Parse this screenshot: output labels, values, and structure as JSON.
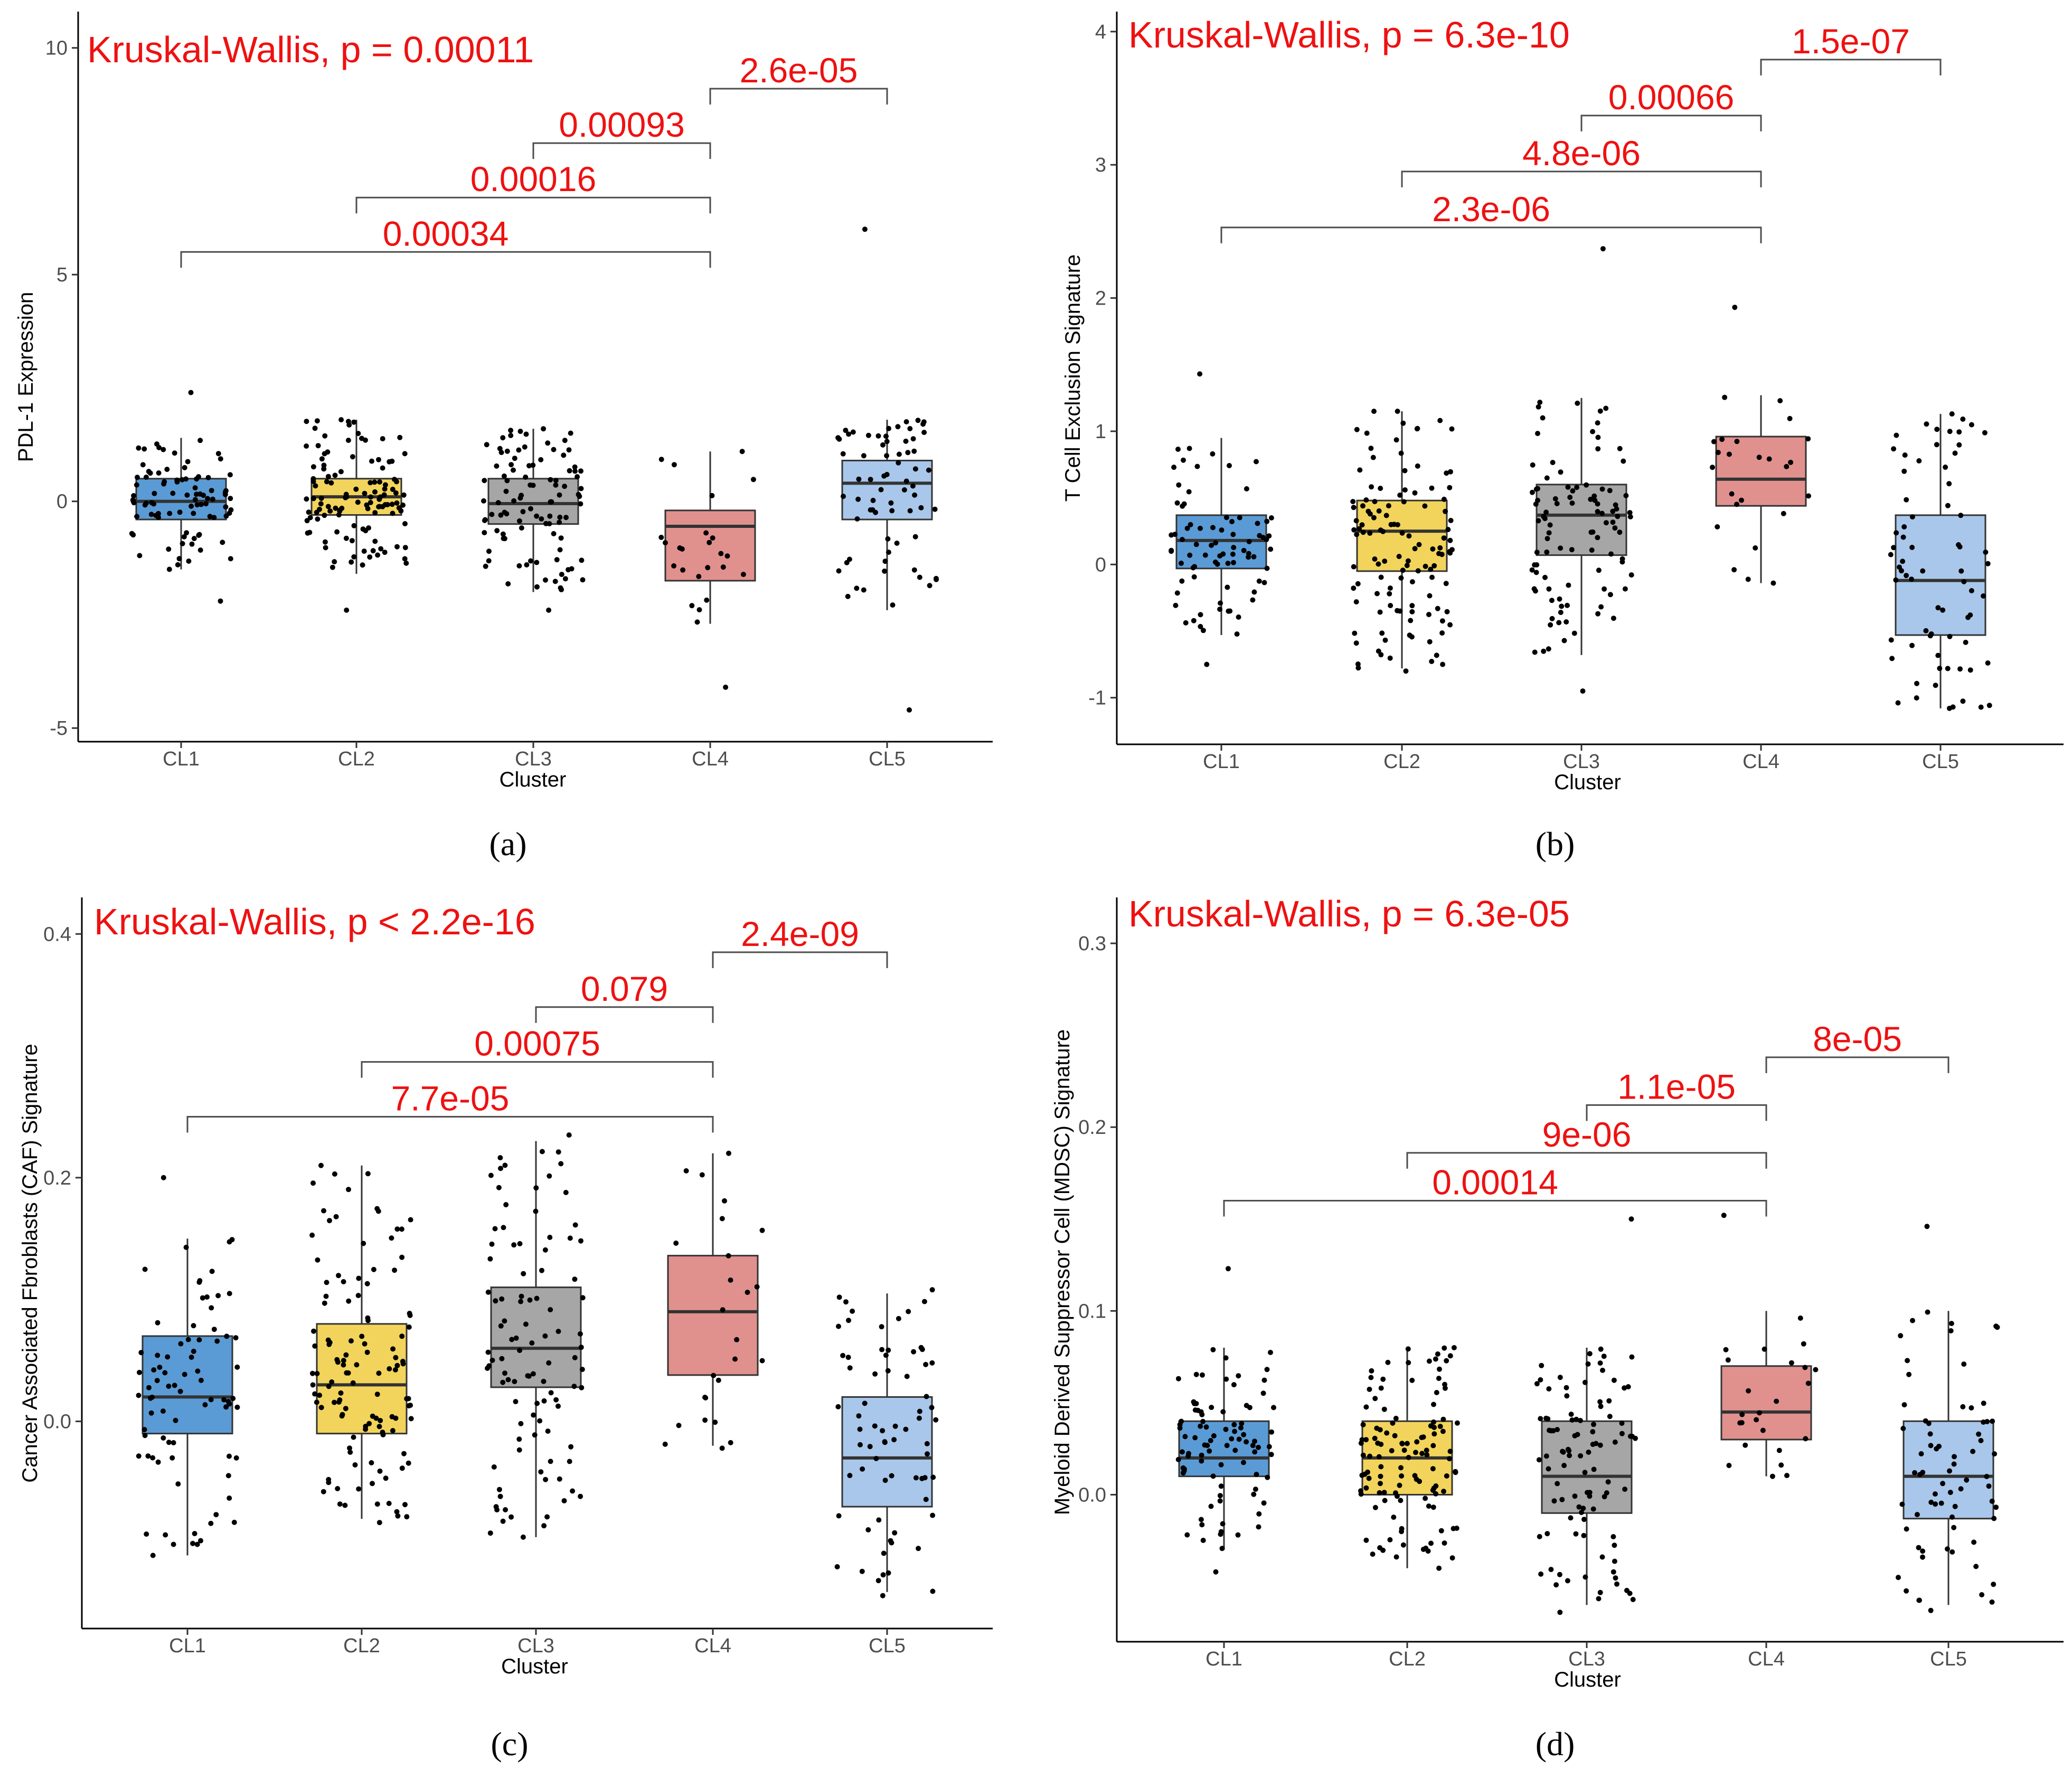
{
  "chart_data": [
    {
      "type": "box",
      "panel": "(a)",
      "xlabel": "Cluster",
      "ylabel": "PDL-1 Expression",
      "ylim": [
        -5.3,
        10.8
      ],
      "yticks": [
        -5,
        0,
        5,
        10
      ],
      "ytick_labels": [
        "-5",
        "0",
        "5",
        "10"
      ],
      "kruskal_label": "Kruskal-Wallis, p = 0.00011",
      "categories": [
        "CL1",
        "CL2",
        "CL3",
        "CL4",
        "CL5"
      ],
      "boxes": [
        {
          "cluster": "CL1",
          "color": "#5b9bd5",
          "q1": -0.4,
          "median": 0.0,
          "q3": 0.5,
          "whisker_low": -1.5,
          "whisker_high": 1.4,
          "n": 90,
          "seed": 11,
          "jlow": -2.2,
          "jhigh": 2.4
        },
        {
          "cluster": "CL2",
          "color": "#f2d45c",
          "q1": -0.3,
          "median": 0.1,
          "q3": 0.5,
          "whisker_low": -1.6,
          "whisker_high": 1.8,
          "n": 120,
          "seed": 12,
          "jlow": -2.4,
          "jhigh": 1.8
        },
        {
          "cluster": "CL3",
          "color": "#a6a6a6",
          "q1": -0.5,
          "median": -0.05,
          "q3": 0.5,
          "whisker_low": -2.0,
          "whisker_high": 1.6,
          "n": 100,
          "seed": 13,
          "jlow": -2.4,
          "jhigh": 1.6
        },
        {
          "cluster": "CL4",
          "color": "#e0918e",
          "q1": -1.75,
          "median": -0.55,
          "q3": -0.2,
          "whisker_low": -2.7,
          "whisker_high": 1.1,
          "n": 25,
          "seed": 14,
          "jlow": -4.1,
          "jhigh": 1.1
        },
        {
          "cluster": "CL5",
          "color": "#a9c7ea",
          "q1": -0.4,
          "median": 0.4,
          "q3": 0.9,
          "whisker_low": -2.4,
          "whisker_high": 1.8,
          "n": 70,
          "seed": 15,
          "jlow": -4.6,
          "jhigh": 6.0
        }
      ],
      "comparisons": [
        {
          "from": "CL1",
          "to": "CL4",
          "y": 5.5,
          "label": "0.00034"
        },
        {
          "from": "CL2",
          "to": "CL4",
          "y": 6.7,
          "label": "0.00016"
        },
        {
          "from": "CL3",
          "to": "CL4",
          "y": 7.9,
          "label": "0.00093"
        },
        {
          "from": "CL4",
          "to": "CL5",
          "y": 9.1,
          "label": "2.6e-05"
        }
      ]
    },
    {
      "type": "box",
      "panel": "(b)",
      "xlabel": "Cluster",
      "ylabel": "T Cell Exclusion Signature",
      "ylim": [
        -1.35,
        4.15
      ],
      "yticks": [
        -1,
        0,
        1,
        2,
        3,
        4
      ],
      "ytick_labels": [
        "-1",
        "0",
        "1",
        "2",
        "3",
        "4"
      ],
      "kruskal_label": "Kruskal-Wallis, p = 6.3e-10",
      "categories": [
        "CL1",
        "CL2",
        "CL3",
        "CL4",
        "CL5"
      ],
      "boxes": [
        {
          "cluster": "CL1",
          "color": "#5b9bd5",
          "q1": -0.03,
          "median": 0.18,
          "q3": 0.37,
          "whisker_low": -0.53,
          "whisker_high": 0.95,
          "n": 80,
          "seed": 21,
          "jlow": -0.75,
          "jhigh": 1.43
        },
        {
          "cluster": "CL2",
          "color": "#f2d45c",
          "q1": -0.05,
          "median": 0.25,
          "q3": 0.48,
          "whisker_low": -0.78,
          "whisker_high": 1.15,
          "n": 120,
          "seed": 22,
          "jlow": -0.8,
          "jhigh": 1.15
        },
        {
          "cluster": "CL3",
          "color": "#a6a6a6",
          "q1": 0.07,
          "median": 0.37,
          "q3": 0.6,
          "whisker_low": -0.68,
          "whisker_high": 1.25,
          "n": 100,
          "seed": 23,
          "jlow": -0.95,
          "jhigh": 2.37
        },
        {
          "cluster": "CL4",
          "color": "#e0918e",
          "q1": 0.44,
          "median": 0.64,
          "q3": 0.96,
          "whisker_low": -0.14,
          "whisker_high": 1.27,
          "n": 25,
          "seed": 24,
          "jlow": -0.14,
          "jhigh": 1.93
        },
        {
          "cluster": "CL5",
          "color": "#a9c7ea",
          "q1": -0.53,
          "median": -0.12,
          "q3": 0.37,
          "whisker_low": -1.08,
          "whisker_high": 1.13,
          "n": 70,
          "seed": 25,
          "jlow": -1.08,
          "jhigh": 1.13
        }
      ],
      "comparisons": [
        {
          "from": "CL1",
          "to": "CL4",
          "y": 2.53,
          "label": "2.3e-06"
        },
        {
          "from": "CL2",
          "to": "CL4",
          "y": 2.95,
          "label": "4.8e-06"
        },
        {
          "from": "CL3",
          "to": "CL4",
          "y": 3.37,
          "label": "0.00066"
        },
        {
          "from": "CL4",
          "to": "CL5",
          "y": 3.79,
          "label": "1.5e-07"
        }
      ]
    },
    {
      "type": "box",
      "panel": "(c)",
      "xlabel": "Cluster",
      "ylabel": "Cancer Associated Fbroblasts (CAF) Signature",
      "ylim": [
        -0.17,
        0.43
      ],
      "yticks": [
        0.0,
        0.2,
        0.4
      ],
      "ytick_labels": [
        "0.0",
        "0.2",
        "0.4"
      ],
      "kruskal_label": "Kruskal-Wallis, p < 2.2e-16",
      "categories": [
        "CL1",
        "CL2",
        "CL3",
        "CL4",
        "CL5"
      ],
      "boxes": [
        {
          "cluster": "CL1",
          "color": "#5b9bd5",
          "q1": -0.01,
          "median": 0.02,
          "q3": 0.07,
          "whisker_low": -0.11,
          "whisker_high": 0.15,
          "n": 80,
          "seed": 31,
          "jlow": -0.11,
          "jhigh": 0.2
        },
        {
          "cluster": "CL2",
          "color": "#f2d45c",
          "q1": -0.01,
          "median": 0.03,
          "q3": 0.08,
          "whisker_low": -0.08,
          "whisker_high": 0.21,
          "n": 120,
          "seed": 32,
          "jlow": -0.083,
          "jhigh": 0.21
        },
        {
          "cluster": "CL3",
          "color": "#a6a6a6",
          "q1": 0.028,
          "median": 0.06,
          "q3": 0.11,
          "whisker_low": -0.095,
          "whisker_high": 0.23,
          "n": 100,
          "seed": 33,
          "jlow": -0.095,
          "jhigh": 0.235
        },
        {
          "cluster": "CL4",
          "color": "#e0918e",
          "q1": 0.038,
          "median": 0.09,
          "q3": 0.136,
          "whisker_low": -0.02,
          "whisker_high": 0.22,
          "n": 25,
          "seed": 34,
          "jlow": -0.022,
          "jhigh": 0.22
        },
        {
          "cluster": "CL5",
          "color": "#a9c7ea",
          "q1": -0.07,
          "median": -0.03,
          "q3": 0.02,
          "whisker_low": -0.14,
          "whisker_high": 0.105,
          "n": 70,
          "seed": 35,
          "jlow": -0.143,
          "jhigh": 0.108
        }
      ],
      "comparisons": [
        {
          "from": "CL1",
          "to": "CL4",
          "y": 0.25,
          "label": "7.7e-05"
        },
        {
          "from": "CL2",
          "to": "CL4",
          "y": 0.295,
          "label": "0.00075"
        },
        {
          "from": "CL3",
          "to": "CL4",
          "y": 0.34,
          "label": "0.079"
        },
        {
          "from": "CL4",
          "to": "CL5",
          "y": 0.385,
          "label": "2.4e-09"
        }
      ]
    },
    {
      "type": "box",
      "panel": "(d)",
      "xlabel": "Cluster",
      "ylabel": "Myeloid Derived Suppressor Cell (MDSC) Signature",
      "ylim": [
        -0.08,
        0.325
      ],
      "yticks": [
        0.0,
        0.1,
        0.2,
        0.3
      ],
      "ytick_labels": [
        "0.0",
        "0.1",
        "0.2",
        "0.3"
      ],
      "kruskal_label": "Kruskal-Wallis, p = 6.3e-05",
      "categories": [
        "CL1",
        "CL2",
        "CL3",
        "CL4",
        "CL5"
      ],
      "boxes": [
        {
          "cluster": "CL1",
          "color": "#5b9bd5",
          "q1": 0.01,
          "median": 0.02,
          "q3": 0.04,
          "whisker_low": -0.03,
          "whisker_high": 0.08,
          "n": 90,
          "seed": 41,
          "jlow": -0.042,
          "jhigh": 0.123
        },
        {
          "cluster": "CL2",
          "color": "#f2d45c",
          "q1": 0.0,
          "median": 0.02,
          "q3": 0.04,
          "whisker_low": -0.04,
          "whisker_high": 0.08,
          "n": 120,
          "seed": 42,
          "jlow": -0.04,
          "jhigh": 0.08
        },
        {
          "cluster": "CL3",
          "color": "#a6a6a6",
          "q1": -0.01,
          "median": 0.01,
          "q3": 0.04,
          "whisker_low": -0.06,
          "whisker_high": 0.08,
          "n": 100,
          "seed": 43,
          "jlow": -0.064,
          "jhigh": 0.15
        },
        {
          "cluster": "CL4",
          "color": "#e0918e",
          "q1": 0.03,
          "median": 0.045,
          "q3": 0.07,
          "whisker_low": 0.01,
          "whisker_high": 0.1,
          "n": 25,
          "seed": 44,
          "jlow": 0.01,
          "jhigh": 0.152
        },
        {
          "cluster": "CL5",
          "color": "#a9c7ea",
          "q1": -0.013,
          "median": 0.01,
          "q3": 0.04,
          "whisker_low": -0.06,
          "whisker_high": 0.1,
          "n": 70,
          "seed": 45,
          "jlow": -0.063,
          "jhigh": 0.146
        }
      ],
      "comparisons": [
        {
          "from": "CL1",
          "to": "CL4",
          "y": 0.16,
          "label": "0.00014"
        },
        {
          "from": "CL2",
          "to": "CL4",
          "y": 0.186,
          "label": "9e-06"
        },
        {
          "from": "CL3",
          "to": "CL4",
          "y": 0.212,
          "label": "1.1e-05"
        },
        {
          "from": "CL4",
          "to": "CL5",
          "y": 0.238,
          "label": "8e-05"
        }
      ]
    }
  ]
}
